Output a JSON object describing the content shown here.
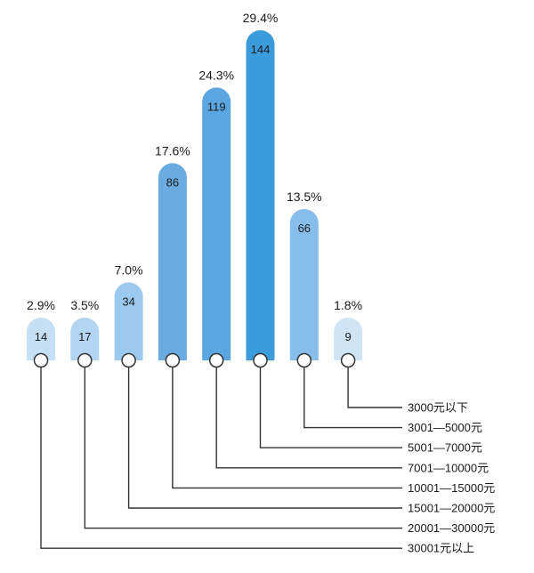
{
  "chart_data": {
    "type": "bar",
    "categories": [
      "30001元以上",
      "20001—30000元",
      "15001—20000元",
      "10001—15000元",
      "7001—10000元",
      "5001—7000元",
      "3001—5000元",
      "3000元以下"
    ],
    "values": [
      14,
      17,
      34,
      86,
      119,
      144,
      66,
      9
    ],
    "percent_labels": [
      "2.9%",
      "3.5%",
      "7.0%",
      "17.6%",
      "24.3%",
      "29.4%",
      "13.5%",
      "1.8%"
    ],
    "legend_order": [
      "3000元以下",
      "3001—5000元",
      "5001—7000元",
      "7001—10000元",
      "10001—15000元",
      "15001—20000元",
      "20001—30000元",
      "30001元以上"
    ],
    "ylim": [
      0,
      144
    ],
    "colors": [
      "#c5dff4",
      "#b3d5f2",
      "#9ccaee",
      "#6aabe2",
      "#5aa6e3",
      "#3b9cdc",
      "#86bdea",
      "#cfe4f5"
    ],
    "grid": false,
    "legend": "bottom-right"
  }
}
